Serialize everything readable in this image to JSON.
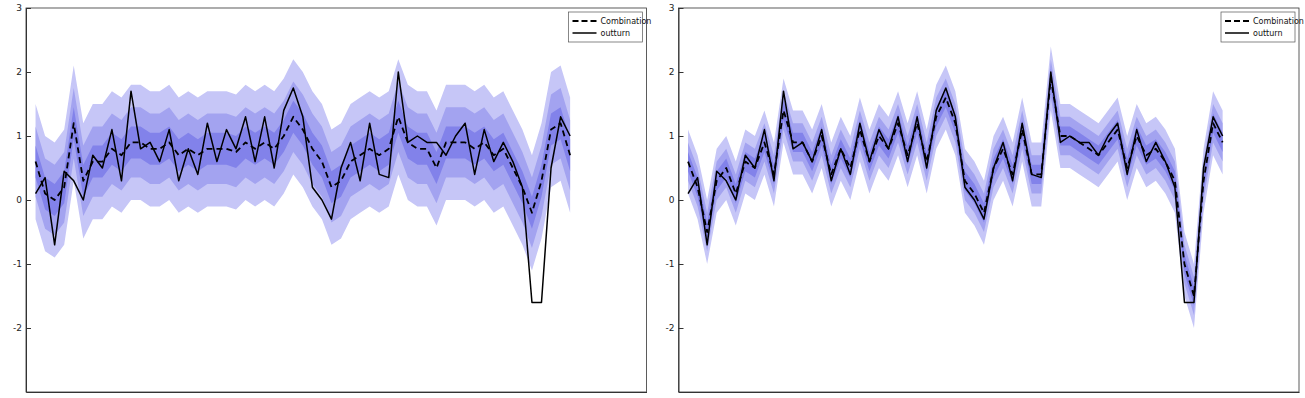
{
  "chart_data": [
    {
      "type": "line",
      "x": [
        1,
        2,
        3,
        4,
        5,
        6,
        7,
        8,
        9,
        10,
        11,
        12,
        13,
        14,
        15,
        16,
        17,
        18,
        19,
        20,
        21,
        22,
        23,
        24,
        25,
        26,
        27,
        28,
        29,
        30,
        31,
        32,
        33,
        34,
        35,
        36,
        37,
        38,
        39,
        40,
        41,
        42,
        43,
        44,
        45,
        46,
        47,
        48,
        49,
        50,
        51,
        52,
        53,
        54,
        55,
        56,
        57
      ],
      "xlim": [
        0,
        65
      ],
      "ylim": [
        -3,
        3
      ],
      "yticks": [
        -2,
        -1,
        0,
        1,
        2,
        3
      ],
      "tick_labels": "y",
      "legend": "top-right",
      "series": [
        {
          "name": "Combination",
          "color": "#000000",
          "line_style": "dashed",
          "values": [
            0.6,
            0.1,
            0.0,
            0.2,
            1.2,
            0.3,
            0.6,
            0.6,
            0.8,
            0.7,
            0.9,
            0.9,
            0.8,
            0.8,
            0.9,
            0.7,
            0.8,
            0.7,
            0.8,
            0.8,
            0.8,
            0.75,
            0.9,
            0.8,
            0.9,
            0.8,
            1.0,
            1.3,
            1.1,
            0.8,
            0.6,
            0.2,
            0.3,
            0.6,
            0.7,
            0.8,
            0.7,
            0.8,
            1.3,
            0.9,
            0.8,
            0.8,
            0.5,
            0.9,
            0.9,
            0.9,
            0.8,
            0.9,
            0.7,
            0.8,
            0.5,
            0.2,
            -0.2,
            0.3,
            1.1,
            1.2,
            0.7
          ]
        },
        {
          "name": "outturn",
          "color": "#000000",
          "line_style": "solid",
          "values": [
            0.1,
            0.35,
            -0.7,
            0.45,
            0.3,
            0.0,
            0.7,
            0.5,
            1.1,
            0.3,
            1.7,
            0.8,
            0.9,
            0.6,
            1.1,
            0.3,
            0.8,
            0.4,
            1.2,
            0.6,
            1.1,
            0.8,
            1.3,
            0.6,
            1.3,
            0.5,
            1.4,
            1.75,
            1.3,
            0.2,
            0.0,
            -0.3,
            0.5,
            0.9,
            0.3,
            1.2,
            0.4,
            0.35,
            2.0,
            0.9,
            1.0,
            0.9,
            0.9,
            0.7,
            1.0,
            1.2,
            0.4,
            1.1,
            0.6,
            0.9,
            0.6,
            0.2,
            -1.6,
            -1.6,
            0.5,
            1.3,
            1.0
          ]
        }
      ],
      "bands": [
        {
          "color": "#c6c6f7",
          "lower": [
            -0.3,
            -0.8,
            -0.9,
            -0.7,
            0.3,
            -0.6,
            -0.3,
            -0.3,
            -0.1,
            -0.2,
            0.0,
            0.0,
            -0.1,
            -0.1,
            0.0,
            -0.2,
            -0.1,
            -0.2,
            -0.1,
            -0.1,
            -0.1,
            -0.15,
            0.0,
            -0.1,
            0.0,
            -0.1,
            0.1,
            0.4,
            0.2,
            -0.1,
            -0.3,
            -0.7,
            -0.6,
            -0.3,
            -0.2,
            -0.1,
            -0.2,
            -0.1,
            0.4,
            0.0,
            -0.1,
            -0.1,
            -0.4,
            0.0,
            0.0,
            0.0,
            -0.1,
            0.0,
            -0.2,
            -0.1,
            -0.4,
            -0.7,
            -1.1,
            -0.6,
            0.2,
            0.3,
            -0.2
          ],
          "upper": [
            1.5,
            1.0,
            0.9,
            1.1,
            2.1,
            1.2,
            1.5,
            1.5,
            1.7,
            1.6,
            1.8,
            1.8,
            1.7,
            1.7,
            1.8,
            1.6,
            1.7,
            1.6,
            1.7,
            1.7,
            1.7,
            1.65,
            1.8,
            1.7,
            1.8,
            1.7,
            1.9,
            2.2,
            2.0,
            1.7,
            1.5,
            1.1,
            1.2,
            1.5,
            1.6,
            1.7,
            1.6,
            1.7,
            2.2,
            1.8,
            1.7,
            1.7,
            1.4,
            1.8,
            1.8,
            1.8,
            1.7,
            1.8,
            1.6,
            1.7,
            1.4,
            1.1,
            0.7,
            1.2,
            2.0,
            2.1,
            1.6
          ]
        },
        {
          "color": "#a3a3f0",
          "lower": [
            0.05,
            -0.45,
            -0.55,
            -0.35,
            0.65,
            -0.25,
            0.05,
            0.05,
            0.25,
            0.15,
            0.35,
            0.35,
            0.25,
            0.25,
            0.35,
            0.15,
            0.25,
            0.15,
            0.25,
            0.25,
            0.25,
            0.2,
            0.35,
            0.25,
            0.35,
            0.25,
            0.45,
            0.75,
            0.55,
            0.25,
            0.05,
            -0.35,
            -0.25,
            0.05,
            0.15,
            0.25,
            0.15,
            0.25,
            0.75,
            0.35,
            0.25,
            0.25,
            -0.05,
            0.35,
            0.35,
            0.35,
            0.25,
            0.35,
            0.15,
            0.25,
            -0.05,
            -0.35,
            -0.75,
            -0.25,
            0.55,
            0.65,
            0.15
          ],
          "upper": [
            1.15,
            0.65,
            0.55,
            0.75,
            1.75,
            0.85,
            1.15,
            1.15,
            1.35,
            1.25,
            1.45,
            1.45,
            1.35,
            1.35,
            1.45,
            1.25,
            1.35,
            1.25,
            1.35,
            1.35,
            1.35,
            1.3,
            1.45,
            1.35,
            1.45,
            1.35,
            1.55,
            1.85,
            1.65,
            1.35,
            1.15,
            0.75,
            0.85,
            1.15,
            1.25,
            1.35,
            1.25,
            1.35,
            1.85,
            1.45,
            1.35,
            1.35,
            1.05,
            1.45,
            1.45,
            1.45,
            1.35,
            1.45,
            1.25,
            1.35,
            1.05,
            0.75,
            0.35,
            0.85,
            1.65,
            1.75,
            1.25
          ]
        },
        {
          "color": "#8282ea",
          "lower": [
            0.35,
            -0.15,
            -0.25,
            -0.05,
            0.95,
            0.05,
            0.35,
            0.35,
            0.55,
            0.45,
            0.65,
            0.65,
            0.55,
            0.55,
            0.65,
            0.45,
            0.55,
            0.45,
            0.55,
            0.55,
            0.55,
            0.5,
            0.65,
            0.55,
            0.65,
            0.55,
            0.75,
            1.05,
            0.85,
            0.55,
            0.35,
            -0.05,
            0.05,
            0.35,
            0.45,
            0.55,
            0.45,
            0.55,
            1.05,
            0.65,
            0.55,
            0.55,
            0.25,
            0.65,
            0.65,
            0.65,
            0.55,
            0.65,
            0.45,
            0.55,
            0.25,
            -0.05,
            -0.45,
            0.05,
            0.85,
            0.95,
            0.45
          ],
          "upper": [
            0.85,
            0.35,
            0.25,
            0.45,
            1.45,
            0.55,
            0.85,
            0.85,
            1.05,
            0.95,
            1.15,
            1.15,
            1.05,
            1.05,
            1.15,
            0.95,
            1.05,
            0.95,
            1.05,
            1.05,
            1.05,
            1.0,
            1.15,
            1.05,
            1.15,
            1.05,
            1.25,
            1.55,
            1.35,
            1.05,
            0.85,
            0.45,
            0.55,
            0.85,
            0.95,
            1.05,
            0.95,
            1.05,
            1.55,
            1.15,
            1.05,
            1.05,
            0.75,
            1.15,
            1.15,
            1.15,
            1.05,
            1.15,
            0.95,
            1.05,
            0.75,
            0.45,
            0.05,
            0.55,
            1.35,
            1.45,
            0.95
          ]
        }
      ]
    },
    {
      "type": "line",
      "x": [
        1,
        2,
        3,
        4,
        5,
        6,
        7,
        8,
        9,
        10,
        11,
        12,
        13,
        14,
        15,
        16,
        17,
        18,
        19,
        20,
        21,
        22,
        23,
        24,
        25,
        26,
        27,
        28,
        29,
        30,
        31,
        32,
        33,
        34,
        35,
        36,
        37,
        38,
        39,
        40,
        41,
        42,
        43,
        44,
        45,
        46,
        47,
        48,
        49,
        50,
        51,
        52,
        53,
        54,
        55,
        56,
        57
      ],
      "xlim": [
        0,
        65
      ],
      "ylim": [
        -3,
        3
      ],
      "yticks": [
        -2,
        -1,
        0,
        1,
        2,
        3
      ],
      "tick_labels": "y",
      "legend": "top-right",
      "series": [
        {
          "name": "Combination",
          "color": "#000000",
          "line_style": "dashed",
          "values": [
            0.6,
            0.2,
            -0.5,
            0.3,
            0.5,
            0.1,
            0.6,
            0.5,
            0.9,
            0.4,
            1.4,
            0.9,
            0.9,
            0.6,
            1.0,
            0.4,
            0.8,
            0.5,
            1.1,
            0.6,
            1.0,
            0.8,
            1.2,
            0.7,
            1.2,
            0.6,
            1.3,
            1.6,
            1.2,
            0.3,
            0.1,
            -0.2,
            0.5,
            0.8,
            0.4,
            1.1,
            0.4,
            0.4,
            1.9,
            1.0,
            1.0,
            0.9,
            0.8,
            0.7,
            0.9,
            1.1,
            0.5,
            1.0,
            0.7,
            0.8,
            0.6,
            0.3,
            -1.0,
            -1.5,
            0.3,
            1.2,
            0.9
          ]
        },
        {
          "name": "outturn",
          "color": "#000000",
          "line_style": "solid",
          "values": [
            0.1,
            0.35,
            -0.7,
            0.45,
            0.3,
            0.0,
            0.7,
            0.5,
            1.1,
            0.3,
            1.7,
            0.8,
            0.9,
            0.6,
            1.1,
            0.3,
            0.8,
            0.4,
            1.2,
            0.6,
            1.1,
            0.8,
            1.3,
            0.6,
            1.3,
            0.5,
            1.4,
            1.75,
            1.3,
            0.2,
            0.0,
            -0.3,
            0.5,
            0.9,
            0.3,
            1.2,
            0.4,
            0.35,
            2.0,
            0.9,
            1.0,
            0.9,
            0.9,
            0.7,
            1.0,
            1.2,
            0.4,
            1.1,
            0.6,
            0.9,
            0.6,
            0.2,
            -1.6,
            -1.6,
            0.5,
            1.3,
            1.0
          ]
        }
      ],
      "bands": [
        {
          "color": "#c6c6f7",
          "lower": [
            0.1,
            -0.3,
            -1.0,
            -0.2,
            0.0,
            -0.4,
            0.1,
            0.0,
            0.4,
            -0.1,
            0.9,
            0.4,
            0.4,
            0.1,
            0.5,
            -0.1,
            0.3,
            0.0,
            0.6,
            0.1,
            0.5,
            0.3,
            0.7,
            0.2,
            0.7,
            0.1,
            0.8,
            1.1,
            0.7,
            -0.2,
            -0.4,
            -0.7,
            0.0,
            0.3,
            -0.1,
            0.6,
            -0.1,
            -0.1,
            1.4,
            0.5,
            0.5,
            0.4,
            0.3,
            0.2,
            0.4,
            0.6,
            0.0,
            0.5,
            0.2,
            0.3,
            0.1,
            -0.2,
            -1.5,
            -2.0,
            -0.2,
            0.7,
            0.4
          ],
          "upper": [
            1.1,
            0.7,
            0.0,
            0.8,
            1.0,
            0.6,
            1.1,
            1.0,
            1.4,
            0.9,
            1.9,
            1.4,
            1.4,
            1.1,
            1.5,
            0.9,
            1.3,
            1.0,
            1.6,
            1.1,
            1.5,
            1.3,
            1.7,
            1.2,
            1.7,
            1.1,
            1.8,
            2.1,
            1.7,
            0.8,
            0.6,
            0.3,
            1.0,
            1.3,
            0.9,
            1.6,
            0.9,
            0.9,
            2.4,
            1.5,
            1.5,
            1.4,
            1.3,
            1.2,
            1.4,
            1.6,
            1.0,
            1.5,
            1.2,
            1.3,
            1.1,
            0.8,
            -0.5,
            -1.0,
            0.8,
            1.7,
            1.4
          ]
        },
        {
          "color": "#a3a3f0",
          "lower": [
            0.3,
            -0.1,
            -0.8,
            0.0,
            0.2,
            -0.2,
            0.3,
            0.2,
            0.6,
            0.1,
            1.1,
            0.6,
            0.6,
            0.3,
            0.7,
            0.1,
            0.5,
            0.2,
            0.8,
            0.3,
            0.7,
            0.5,
            0.9,
            0.4,
            0.9,
            0.3,
            1.0,
            1.3,
            0.9,
            0.0,
            -0.2,
            -0.5,
            0.2,
            0.5,
            0.1,
            0.8,
            0.1,
            0.1,
            1.6,
            0.7,
            0.7,
            0.6,
            0.5,
            0.4,
            0.6,
            0.8,
            0.2,
            0.7,
            0.4,
            0.5,
            0.3,
            0.0,
            -1.3,
            -1.8,
            0.0,
            0.9,
            0.6
          ],
          "upper": [
            0.9,
            0.5,
            -0.2,
            0.6,
            0.8,
            0.4,
            0.9,
            0.8,
            1.2,
            0.7,
            1.7,
            1.2,
            1.2,
            0.9,
            1.3,
            0.7,
            1.1,
            0.8,
            1.4,
            0.9,
            1.3,
            1.1,
            1.5,
            1.0,
            1.5,
            0.9,
            1.6,
            1.9,
            1.5,
            0.6,
            0.4,
            0.1,
            0.8,
            1.1,
            0.7,
            1.4,
            0.7,
            0.7,
            2.2,
            1.3,
            1.3,
            1.2,
            1.1,
            1.0,
            1.2,
            1.4,
            0.8,
            1.3,
            1.0,
            1.1,
            0.9,
            0.6,
            -0.7,
            -1.2,
            0.6,
            1.5,
            1.2
          ]
        },
        {
          "color": "#8282ea",
          "lower": [
            0.45,
            0.05,
            -0.65,
            0.15,
            0.35,
            -0.05,
            0.45,
            0.35,
            0.75,
            0.25,
            1.25,
            0.75,
            0.75,
            0.45,
            0.85,
            0.25,
            0.65,
            0.35,
            0.95,
            0.45,
            0.85,
            0.65,
            1.05,
            0.55,
            1.05,
            0.45,
            1.15,
            1.45,
            1.05,
            0.15,
            -0.05,
            -0.35,
            0.35,
            0.65,
            0.25,
            0.95,
            0.25,
            0.25,
            1.75,
            0.85,
            0.85,
            0.75,
            0.65,
            0.55,
            0.75,
            0.95,
            0.35,
            0.85,
            0.55,
            0.65,
            0.45,
            0.15,
            -1.15,
            -1.65,
            0.15,
            1.05,
            0.75
          ],
          "upper": [
            0.75,
            0.35,
            -0.35,
            0.45,
            0.65,
            0.25,
            0.75,
            0.65,
            1.05,
            0.55,
            1.55,
            1.05,
            1.05,
            0.75,
            1.15,
            0.55,
            0.95,
            0.65,
            1.25,
            0.75,
            1.15,
            0.95,
            1.35,
            0.85,
            1.35,
            0.75,
            1.45,
            1.75,
            1.35,
            0.45,
            0.25,
            -0.05,
            0.65,
            0.95,
            0.55,
            1.25,
            0.55,
            0.55,
            2.05,
            1.15,
            1.15,
            1.05,
            0.95,
            0.85,
            1.05,
            1.25,
            0.65,
            1.15,
            0.85,
            0.95,
            0.75,
            0.45,
            -0.85,
            -1.35,
            0.45,
            1.35,
            1.05
          ]
        }
      ]
    }
  ]
}
